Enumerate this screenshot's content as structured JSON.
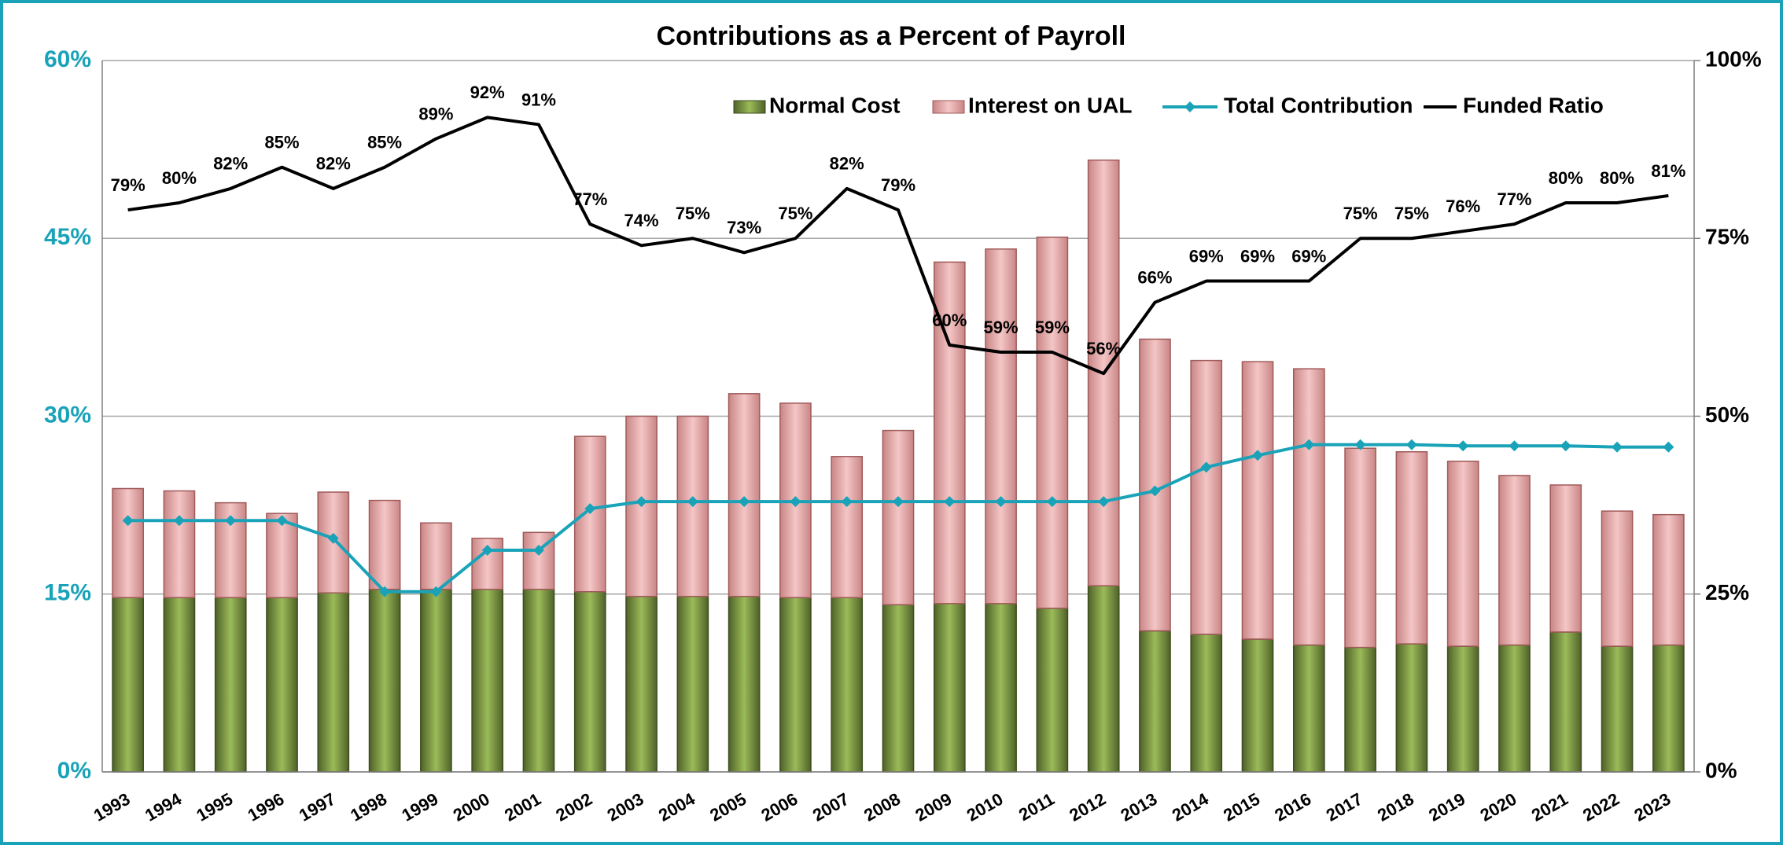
{
  "chart_data": {
    "type": "bar",
    "title": "Contributions as a Percent of Payroll",
    "categories": [
      "1993",
      "1994",
      "1995",
      "1996",
      "1997",
      "1998",
      "1999",
      "2000",
      "2001",
      "2002",
      "2003",
      "2004",
      "2005",
      "2006",
      "2007",
      "2008",
      "2009",
      "2010",
      "2011",
      "2012",
      "2013",
      "2014",
      "2015",
      "2016",
      "2017",
      "2018",
      "2019",
      "2020",
      "2021",
      "2022",
      "2023"
    ],
    "series": [
      {
        "name": "Normal Cost",
        "type": "bar",
        "color": "#77933c",
        "values": [
          14.7,
          14.7,
          14.7,
          14.7,
          15.1,
          15.4,
          15.4,
          15.4,
          15.4,
          15.2,
          14.8,
          14.8,
          14.8,
          14.7,
          14.7,
          14.1,
          14.2,
          14.2,
          13.8,
          15.7,
          11.9,
          11.6,
          11.2,
          10.7,
          10.5,
          10.8,
          10.6,
          10.7,
          11.8,
          10.6,
          10.7
        ]
      },
      {
        "name": "Interest on UAL",
        "type": "bar",
        "color": "#e6a3a3",
        "values": [
          9.2,
          9.0,
          8.0,
          7.1,
          8.5,
          7.5,
          5.6,
          4.3,
          4.8,
          13.1,
          15.2,
          15.2,
          17.1,
          16.4,
          11.9,
          14.7,
          28.8,
          29.9,
          31.3,
          35.9,
          24.6,
          23.1,
          23.4,
          23.3,
          16.8,
          16.2,
          15.6,
          14.3,
          12.4,
          11.4,
          11.0
        ]
      },
      {
        "name": "Total Contribution",
        "type": "line",
        "color": "#1aa3b8",
        "values": [
          21.2,
          21.2,
          21.2,
          21.2,
          19.7,
          15.2,
          15.2,
          18.7,
          18.7,
          22.2,
          22.8,
          22.8,
          22.8,
          22.8,
          22.8,
          22.8,
          22.8,
          22.8,
          22.8,
          22.8,
          23.7,
          25.7,
          26.7,
          27.6,
          27.6,
          27.6,
          27.5,
          27.5,
          27.5,
          27.4,
          27.4
        ]
      },
      {
        "name": "Funded Ratio",
        "type": "line",
        "axis": "y2",
        "color": "#000000",
        "values": [
          79,
          80,
          82,
          85,
          82,
          85,
          89,
          92,
          91,
          77,
          74,
          75,
          73,
          75,
          82,
          79,
          60,
          59,
          59,
          56,
          66,
          69,
          69,
          69,
          75,
          75,
          76,
          77,
          80,
          80,
          81
        ],
        "value_labels": [
          "79%",
          "80%",
          "82%",
          "85%",
          "82%",
          "85%",
          "89%",
          "92%",
          "91%",
          "77%",
          "74%",
          "75%",
          "73%",
          "75%",
          "82%",
          "79%",
          "60%",
          "59%",
          "59%",
          "56%",
          "66%",
          "69%",
          "69%",
          "69%",
          "75%",
          "75%",
          "76%",
          "77%",
          "80%",
          "80%",
          "81%"
        ]
      }
    ],
    "ylim": [
      0,
      60
    ],
    "yticks": [
      {
        "value": 0,
        "label": "0%"
      },
      {
        "value": 15,
        "label": "15%"
      },
      {
        "value": 30,
        "label": "30%"
      },
      {
        "value": 45,
        "label": "45%"
      },
      {
        "value": 60,
        "label": "60%"
      }
    ],
    "y2lim": [
      0,
      100
    ],
    "y2ticks": [
      {
        "value": 0,
        "label": "0%"
      },
      {
        "value": 25,
        "label": "25%"
      },
      {
        "value": 50,
        "label": "50%"
      },
      {
        "value": 75,
        "label": "75%"
      },
      {
        "value": 100,
        "label": "100%"
      }
    ],
    "grid": true,
    "legend": "top"
  }
}
